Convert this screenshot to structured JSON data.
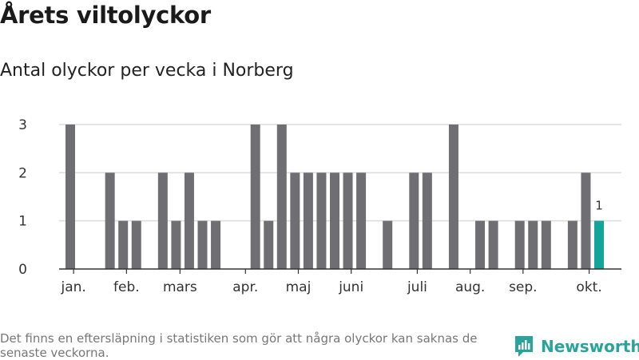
{
  "title": "Årets viltolyckor",
  "subtitle": "Antal olyckor per vecka i Norberg",
  "footnote": "Det finns en eftersläpning i statistiken som gör att några olyckor kan saknas de senaste veckorna.",
  "brand": {
    "name": "Newsworthy",
    "icon": "newsworthy-logo-icon",
    "color": "#2aa39b"
  },
  "colors": {
    "bar": "#6f6e73",
    "highlight": "#13a49a",
    "grid": "#dcdcdc",
    "axis": "#333333"
  },
  "chart_data": {
    "type": "bar",
    "title": "",
    "xlabel": "",
    "ylabel": "",
    "ylim": [
      0,
      3
    ],
    "yticks": [
      0,
      1,
      2,
      3
    ],
    "grid": true,
    "legend": "none",
    "weeks": [
      1,
      2,
      3,
      4,
      5,
      6,
      7,
      8,
      9,
      10,
      11,
      12,
      13,
      14,
      15,
      16,
      17,
      18,
      19,
      20,
      21,
      22,
      23,
      24,
      25,
      26,
      27,
      28,
      29,
      30,
      31,
      32,
      33,
      34,
      35,
      36,
      37,
      38,
      39,
      40,
      41
    ],
    "values": [
      3,
      0,
      0,
      2,
      1,
      1,
      0,
      2,
      1,
      2,
      1,
      1,
      0,
      0,
      3,
      1,
      3,
      2,
      2,
      2,
      2,
      2,
      2,
      0,
      1,
      0,
      2,
      2,
      0,
      3,
      0,
      1,
      1,
      0,
      1,
      1,
      1,
      0,
      1,
      2,
      1
    ],
    "highlight_index": 40,
    "highlight_label": "1",
    "month_labels": [
      {
        "label": "jan.",
        "week": 1.25
      },
      {
        "label": "feb.",
        "week": 5.25
      },
      {
        "label": "mars",
        "week": 9.3
      },
      {
        "label": "apr.",
        "week": 14.25
      },
      {
        "label": "maj",
        "week": 18.25
      },
      {
        "label": "juni",
        "week": 22.25
      },
      {
        "label": "juli",
        "week": 27.25
      },
      {
        "label": "aug.",
        "week": 31.25
      },
      {
        "label": "sep.",
        "week": 35.25
      },
      {
        "label": "okt.",
        "week": 40.25
      }
    ]
  }
}
